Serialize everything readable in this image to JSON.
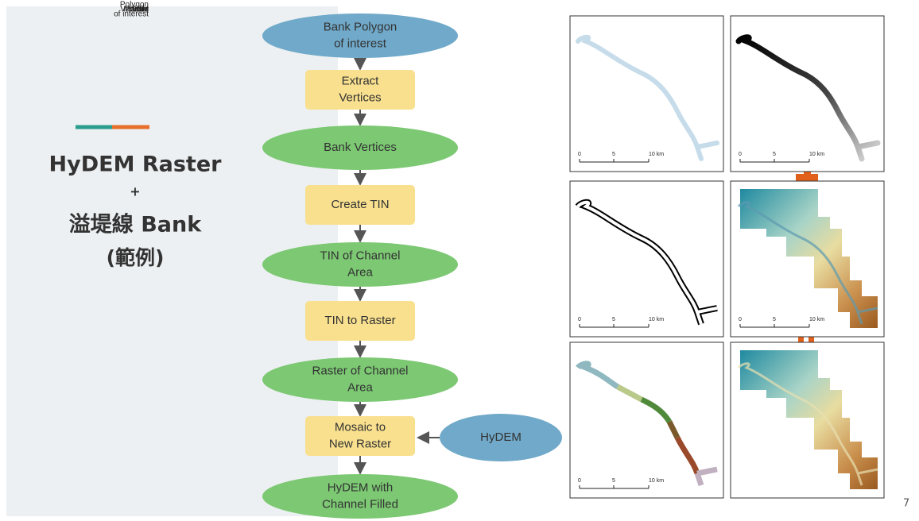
{
  "slide": {
    "title": "HyDEM Raster",
    "plus": "+",
    "subtitle": "溢堤線 Bank",
    "note": "(範例)",
    "page_number": "7"
  },
  "flowchart": {
    "nodes": [
      {
        "shape": "ellipse",
        "lines": [
          "Bank Polygon",
          "of interest"
        ]
      },
      {
        "shape": "rect",
        "lines": [
          "Extract",
          "Vertices"
        ]
      },
      {
        "shape": "ellipse",
        "lines": [
          "Bank Vertices"
        ]
      },
      {
        "shape": "rect",
        "lines": [
          "Create TIN"
        ]
      },
      {
        "shape": "ellipse",
        "lines": [
          "TIN of Channel",
          "Area"
        ]
      },
      {
        "shape": "rect",
        "lines": [
          "TIN to Raster"
        ]
      },
      {
        "shape": "ellipse",
        "lines": [
          "Raster of Channel",
          "Area"
        ]
      },
      {
        "shape": "rect",
        "lines": [
          "Mosaic to",
          "New Raster"
        ]
      },
      {
        "shape": "ellipse",
        "lines": [
          "HyDEM with",
          "Channel Filled"
        ]
      }
    ],
    "side_node": {
      "shape": "ellipse",
      "lines": [
        "HyDEM"
      ]
    }
  },
  "maps": {
    "scale_labels": [
      "0",
      "5",
      "10 km"
    ],
    "panels": [
      {
        "lines": [
          "Polygon",
          "of interest"
        ],
        "style": "polygon"
      },
      {
        "lines": [
          "Raster"
        ],
        "style": "raster"
      },
      {
        "lines": [
          "Vertices"
        ],
        "style": "vertices"
      },
      {
        "lines": [
          "DEM"
        ],
        "style": "dem"
      },
      {
        "lines": [
          "Tin"
        ],
        "style": "tin"
      },
      {
        "lines": [
          "Mosaic"
        ],
        "style": "mosaic"
      }
    ]
  }
}
